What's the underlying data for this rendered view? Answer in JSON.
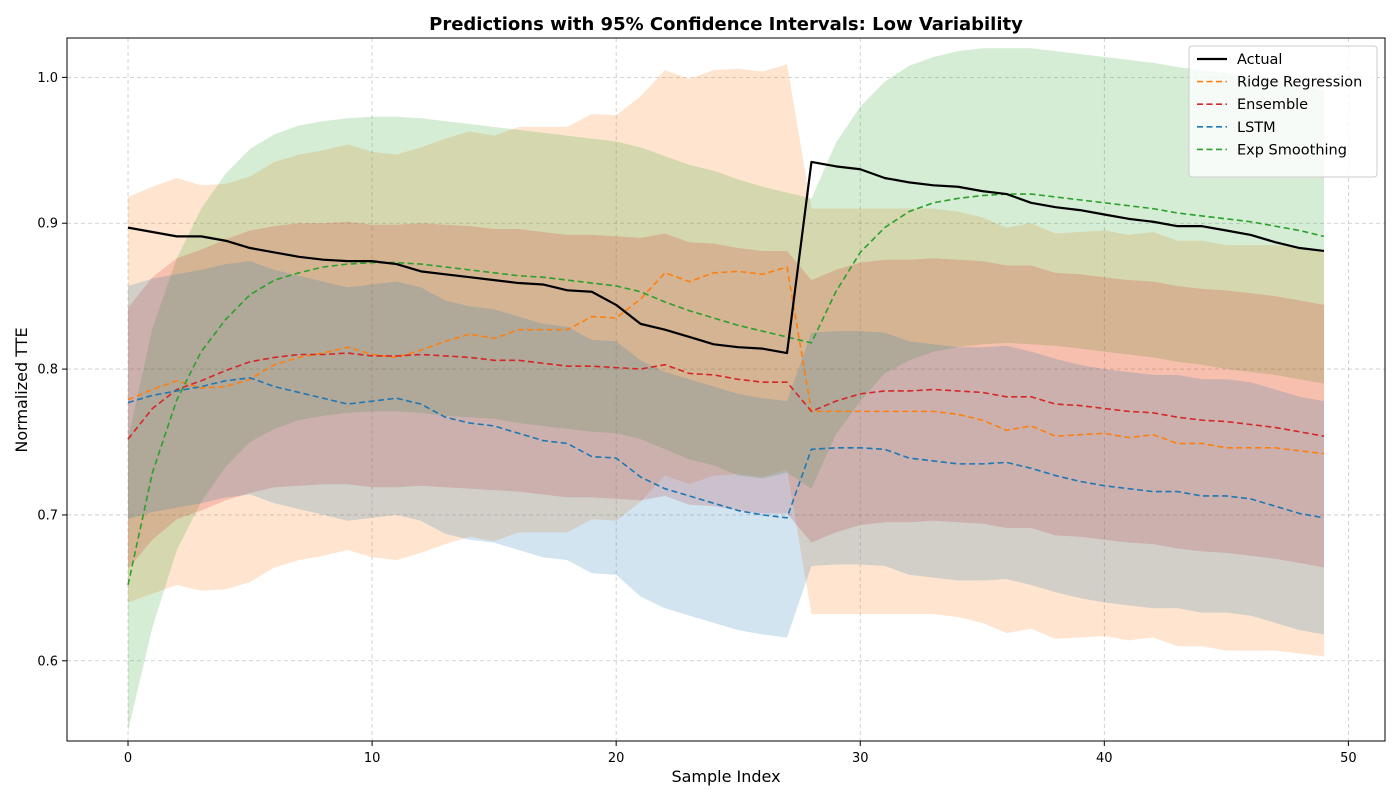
{
  "chart_data": {
    "type": "line",
    "title": "Predictions with 95% Confidence Intervals: Low Variability",
    "xlabel": "Sample Index",
    "ylabel": "Normalized TTE",
    "xlim": [
      -2.5,
      51.5
    ],
    "ylim": [
      0.545,
      1.027
    ],
    "xticks": [
      0,
      10,
      20,
      30,
      40,
      50
    ],
    "yticks": [
      0.6,
      0.7,
      0.8,
      0.9,
      1.0
    ],
    "grid": true,
    "legend_position": "upper right",
    "x": [
      0,
      1,
      2,
      3,
      4,
      5,
      6,
      7,
      8,
      9,
      10,
      11,
      12,
      13,
      14,
      15,
      16,
      17,
      18,
      19,
      20,
      21,
      22,
      23,
      24,
      25,
      26,
      27,
      28,
      29,
      30,
      31,
      32,
      33,
      34,
      35,
      36,
      37,
      38,
      39,
      40,
      41,
      42,
      43,
      44,
      45,
      46,
      47,
      48,
      49
    ],
    "series": [
      {
        "name": "Actual",
        "color": "#000000",
        "style": "solid",
        "values": [
          0.897,
          0.894,
          0.891,
          0.891,
          0.888,
          0.883,
          0.88,
          0.877,
          0.875,
          0.874,
          0.874,
          0.872,
          0.867,
          0.865,
          0.863,
          0.861,
          0.859,
          0.858,
          0.854,
          0.853,
          0.844,
          0.831,
          0.827,
          0.822,
          0.817,
          0.815,
          0.814,
          0.811,
          0.942,
          0.939,
          0.937,
          0.931,
          0.928,
          0.926,
          0.925,
          0.922,
          0.92,
          0.914,
          0.911,
          0.909,
          0.906,
          0.903,
          0.901,
          0.898,
          0.898,
          0.895,
          0.892,
          0.887,
          0.883,
          0.881
        ]
      },
      {
        "name": "Ridge Regression",
        "color": "#ff7f0e",
        "style": "dashed",
        "values": [
          0.779,
          0.786,
          0.792,
          0.787,
          0.788,
          0.793,
          0.803,
          0.808,
          0.811,
          0.815,
          0.81,
          0.808,
          0.813,
          0.819,
          0.824,
          0.821,
          0.827,
          0.827,
          0.827,
          0.836,
          0.835,
          0.848,
          0.866,
          0.86,
          0.866,
          0.867,
          0.865,
          0.87,
          0.771,
          0.771,
          0.771,
          0.771,
          0.771,
          0.771,
          0.769,
          0.765,
          0.758,
          0.761,
          0.754,
          0.755,
          0.756,
          0.753,
          0.755,
          0.749,
          0.749,
          0.746,
          0.746,
          0.746,
          0.744,
          0.742
        ],
        "lower": [
          0.64,
          0.646,
          0.652,
          0.648,
          0.649,
          0.654,
          0.664,
          0.669,
          0.672,
          0.676,
          0.671,
          0.669,
          0.674,
          0.68,
          0.685,
          0.682,
          0.688,
          0.688,
          0.688,
          0.697,
          0.696,
          0.709,
          0.727,
          0.721,
          0.727,
          0.728,
          0.726,
          0.731,
          0.632,
          0.632,
          0.632,
          0.632,
          0.632,
          0.632,
          0.63,
          0.626,
          0.619,
          0.622,
          0.615,
          0.616,
          0.617,
          0.614,
          0.616,
          0.61,
          0.61,
          0.607,
          0.607,
          0.607,
          0.605,
          0.603
        ],
        "upper": [
          0.918,
          0.925,
          0.931,
          0.926,
          0.927,
          0.932,
          0.942,
          0.947,
          0.95,
          0.954,
          0.949,
          0.947,
          0.952,
          0.958,
          0.963,
          0.96,
          0.966,
          0.966,
          0.966,
          0.975,
          0.974,
          0.987,
          1.005,
          0.999,
          1.005,
          1.006,
          1.004,
          1.009,
          0.91,
          0.91,
          0.91,
          0.91,
          0.91,
          0.91,
          0.908,
          0.904,
          0.897,
          0.9,
          0.893,
          0.894,
          0.895,
          0.892,
          0.894,
          0.888,
          0.888,
          0.885,
          0.885,
          0.885,
          0.883,
          0.881
        ]
      },
      {
        "name": "Ensemble",
        "color": "#d62728",
        "style": "dashed",
        "values": [
          0.752,
          0.773,
          0.786,
          0.792,
          0.799,
          0.805,
          0.808,
          0.81,
          0.81,
          0.811,
          0.809,
          0.809,
          0.81,
          0.809,
          0.808,
          0.806,
          0.806,
          0.804,
          0.802,
          0.802,
          0.801,
          0.8,
          0.803,
          0.797,
          0.796,
          0.793,
          0.791,
          0.791,
          0.771,
          0.778,
          0.783,
          0.785,
          0.785,
          0.786,
          0.785,
          0.784,
          0.781,
          0.781,
          0.776,
          0.775,
          0.773,
          0.771,
          0.77,
          0.767,
          0.765,
          0.764,
          0.762,
          0.76,
          0.757,
          0.754
        ],
        "lower": [
          0.663,
          0.683,
          0.697,
          0.703,
          0.71,
          0.715,
          0.719,
          0.72,
          0.721,
          0.721,
          0.719,
          0.719,
          0.72,
          0.719,
          0.718,
          0.717,
          0.716,
          0.714,
          0.712,
          0.712,
          0.711,
          0.71,
          0.713,
          0.707,
          0.706,
          0.703,
          0.701,
          0.701,
          0.681,
          0.688,
          0.693,
          0.695,
          0.695,
          0.696,
          0.695,
          0.694,
          0.691,
          0.691,
          0.686,
          0.685,
          0.683,
          0.681,
          0.68,
          0.677,
          0.675,
          0.674,
          0.672,
          0.67,
          0.667,
          0.664
        ],
        "upper": [
          0.842,
          0.863,
          0.876,
          0.882,
          0.889,
          0.895,
          0.898,
          0.9,
          0.9,
          0.901,
          0.899,
          0.899,
          0.9,
          0.899,
          0.898,
          0.896,
          0.896,
          0.894,
          0.892,
          0.892,
          0.891,
          0.89,
          0.893,
          0.887,
          0.886,
          0.883,
          0.881,
          0.881,
          0.861,
          0.868,
          0.873,
          0.875,
          0.875,
          0.876,
          0.875,
          0.874,
          0.871,
          0.871,
          0.866,
          0.865,
          0.863,
          0.861,
          0.86,
          0.857,
          0.855,
          0.854,
          0.852,
          0.85,
          0.847,
          0.844
        ]
      },
      {
        "name": "LSTM",
        "color": "#1f77b4",
        "style": "dashed",
        "values": [
          0.777,
          0.782,
          0.785,
          0.788,
          0.792,
          0.794,
          0.788,
          0.784,
          0.78,
          0.776,
          0.778,
          0.78,
          0.776,
          0.767,
          0.763,
          0.761,
          0.756,
          0.751,
          0.749,
          0.74,
          0.739,
          0.726,
          0.718,
          0.713,
          0.708,
          0.703,
          0.7,
          0.698,
          0.745,
          0.746,
          0.746,
          0.745,
          0.739,
          0.737,
          0.735,
          0.735,
          0.736,
          0.732,
          0.727,
          0.723,
          0.72,
          0.718,
          0.716,
          0.716,
          0.713,
          0.713,
          0.711,
          0.706,
          0.701,
          0.698
        ],
        "lower": [
          0.697,
          0.702,
          0.705,
          0.708,
          0.712,
          0.714,
          0.708,
          0.704,
          0.7,
          0.696,
          0.698,
          0.7,
          0.696,
          0.687,
          0.683,
          0.681,
          0.676,
          0.671,
          0.669,
          0.66,
          0.659,
          0.644,
          0.636,
          0.631,
          0.626,
          0.621,
          0.618,
          0.616,
          0.665,
          0.666,
          0.666,
          0.665,
          0.659,
          0.657,
          0.655,
          0.655,
          0.656,
          0.652,
          0.647,
          0.643,
          0.64,
          0.638,
          0.636,
          0.636,
          0.633,
          0.633,
          0.631,
          0.626,
          0.621,
          0.618
        ],
        "upper": [
          0.857,
          0.862,
          0.865,
          0.868,
          0.872,
          0.874,
          0.868,
          0.864,
          0.86,
          0.856,
          0.858,
          0.86,
          0.856,
          0.847,
          0.843,
          0.841,
          0.836,
          0.831,
          0.829,
          0.82,
          0.819,
          0.806,
          0.798,
          0.793,
          0.788,
          0.783,
          0.78,
          0.778,
          0.825,
          0.826,
          0.826,
          0.825,
          0.819,
          0.817,
          0.815,
          0.815,
          0.816,
          0.812,
          0.807,
          0.803,
          0.8,
          0.798,
          0.796,
          0.796,
          0.793,
          0.793,
          0.791,
          0.786,
          0.781,
          0.778
        ]
      },
      {
        "name": "Exp Smoothing",
        "color": "#2ca02c",
        "style": "dashed",
        "values": [
          0.652,
          0.729,
          0.779,
          0.812,
          0.834,
          0.851,
          0.861,
          0.866,
          0.87,
          0.872,
          0.873,
          0.873,
          0.872,
          0.87,
          0.868,
          0.866,
          0.864,
          0.863,
          0.861,
          0.859,
          0.857,
          0.853,
          0.846,
          0.84,
          0.835,
          0.83,
          0.826,
          0.822,
          0.818,
          0.853,
          0.88,
          0.897,
          0.908,
          0.914,
          0.917,
          0.919,
          0.92,
          0.92,
          0.918,
          0.916,
          0.914,
          0.912,
          0.91,
          0.907,
          0.905,
          0.903,
          0.901,
          0.898,
          0.895,
          0.891
        ],
        "lower": [
          0.552,
          0.623,
          0.676,
          0.709,
          0.733,
          0.75,
          0.759,
          0.765,
          0.768,
          0.77,
          0.771,
          0.771,
          0.77,
          0.768,
          0.767,
          0.766,
          0.763,
          0.761,
          0.759,
          0.757,
          0.756,
          0.752,
          0.745,
          0.738,
          0.734,
          0.727,
          0.725,
          0.729,
          0.718,
          0.755,
          0.778,
          0.797,
          0.806,
          0.812,
          0.815,
          0.817,
          0.818,
          0.817,
          0.816,
          0.814,
          0.812,
          0.81,
          0.808,
          0.805,
          0.803,
          0.8,
          0.798,
          0.796,
          0.793,
          0.79
        ],
        "upper": [
          0.752,
          0.828,
          0.876,
          0.91,
          0.934,
          0.951,
          0.961,
          0.967,
          0.97,
          0.972,
          0.973,
          0.973,
          0.972,
          0.97,
          0.968,
          0.966,
          0.964,
          0.962,
          0.96,
          0.958,
          0.956,
          0.952,
          0.946,
          0.94,
          0.936,
          0.93,
          0.925,
          0.921,
          0.917,
          0.955,
          0.98,
          0.997,
          1.008,
          1.014,
          1.018,
          1.02,
          1.02,
          1.02,
          1.018,
          1.016,
          1.014,
          1.012,
          1.01,
          1.007,
          1.005,
          1.003,
          1.0,
          0.998,
          0.995,
          0.991
        ]
      }
    ],
    "band_order": [
      "Ridge Regression",
      "Exp Smoothing",
      "Ensemble",
      "LSTM"
    ],
    "band_opacity": 0.2
  }
}
